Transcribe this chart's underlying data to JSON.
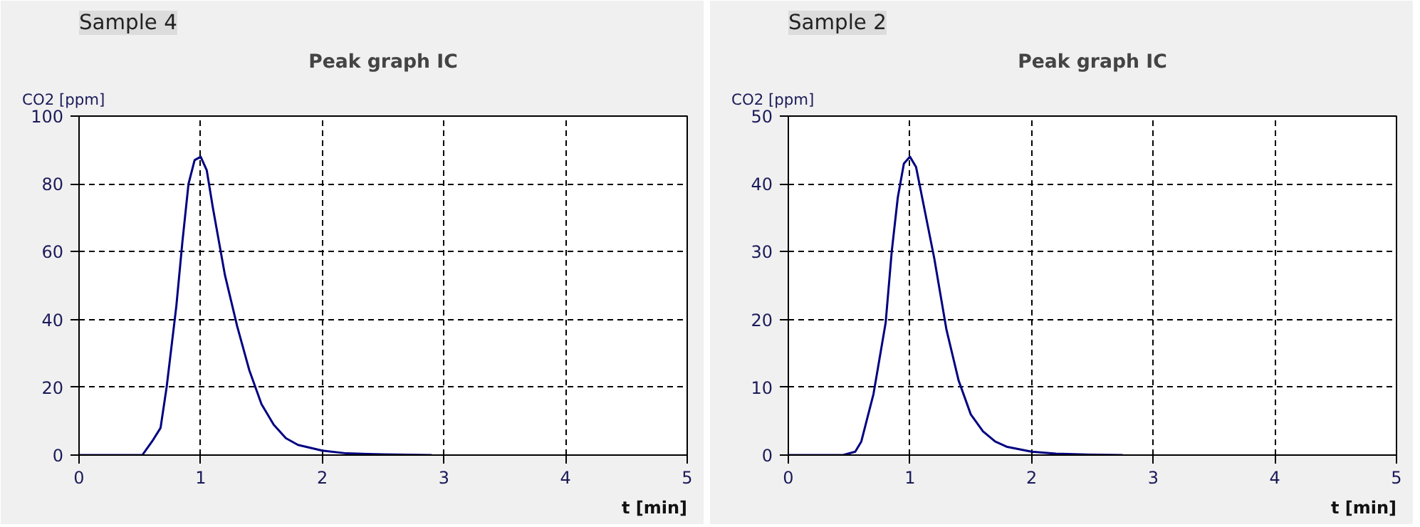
{
  "chart_data": [
    {
      "type": "line",
      "title": "Sample 4",
      "subtitle": "Peak graph IC",
      "xlabel": "t [min]",
      "ylabel": "CO2 [ppm]",
      "xlim": [
        0,
        5
      ],
      "ylim": [
        0,
        100
      ],
      "xticks": [
        0,
        1,
        2,
        3,
        4,
        5
      ],
      "yticks": [
        0,
        20,
        40,
        60,
        80,
        100
      ],
      "grid": true,
      "series": [
        {
          "color": "#000080",
          "x": [
            0,
            0.52,
            0.6,
            0.67,
            0.72,
            0.8,
            0.85,
            0.9,
            0.95,
            1.0,
            1.05,
            1.1,
            1.2,
            1.3,
            1.4,
            1.5,
            1.6,
            1.7,
            1.8,
            2.0,
            2.2,
            2.5,
            2.9
          ],
          "values": [
            0,
            0,
            4,
            8,
            20,
            44,
            63,
            80,
            87,
            88,
            84,
            73,
            53,
            38,
            25,
            15,
            9,
            5,
            3,
            1.3,
            0.5,
            0.2,
            0
          ]
        }
      ]
    },
    {
      "type": "line",
      "title": "Sample 2",
      "subtitle": "Peak graph IC",
      "xlabel": "t [min]",
      "ylabel": "CO2 [ppm]",
      "xlim": [
        0,
        5
      ],
      "ylim": [
        0,
        50
      ],
      "xticks": [
        0,
        1,
        2,
        3,
        4,
        5
      ],
      "yticks": [
        0,
        10,
        20,
        30,
        40,
        50
      ],
      "grid": true,
      "series": [
        {
          "color": "#000080",
          "x": [
            0,
            0.45,
            0.55,
            0.6,
            0.7,
            0.8,
            0.85,
            0.9,
            0.95,
            1.0,
            1.05,
            1.1,
            1.2,
            1.3,
            1.4,
            1.5,
            1.6,
            1.7,
            1.8,
            2.0,
            2.2,
            2.4,
            2.75
          ],
          "values": [
            0,
            0,
            0.5,
            2,
            9,
            19.5,
            30,
            38,
            43,
            44,
            42.5,
            38,
            29,
            18.5,
            11,
            6,
            3.5,
            2,
            1.2,
            0.5,
            0.2,
            0.1,
            0
          ]
        }
      ]
    }
  ]
}
